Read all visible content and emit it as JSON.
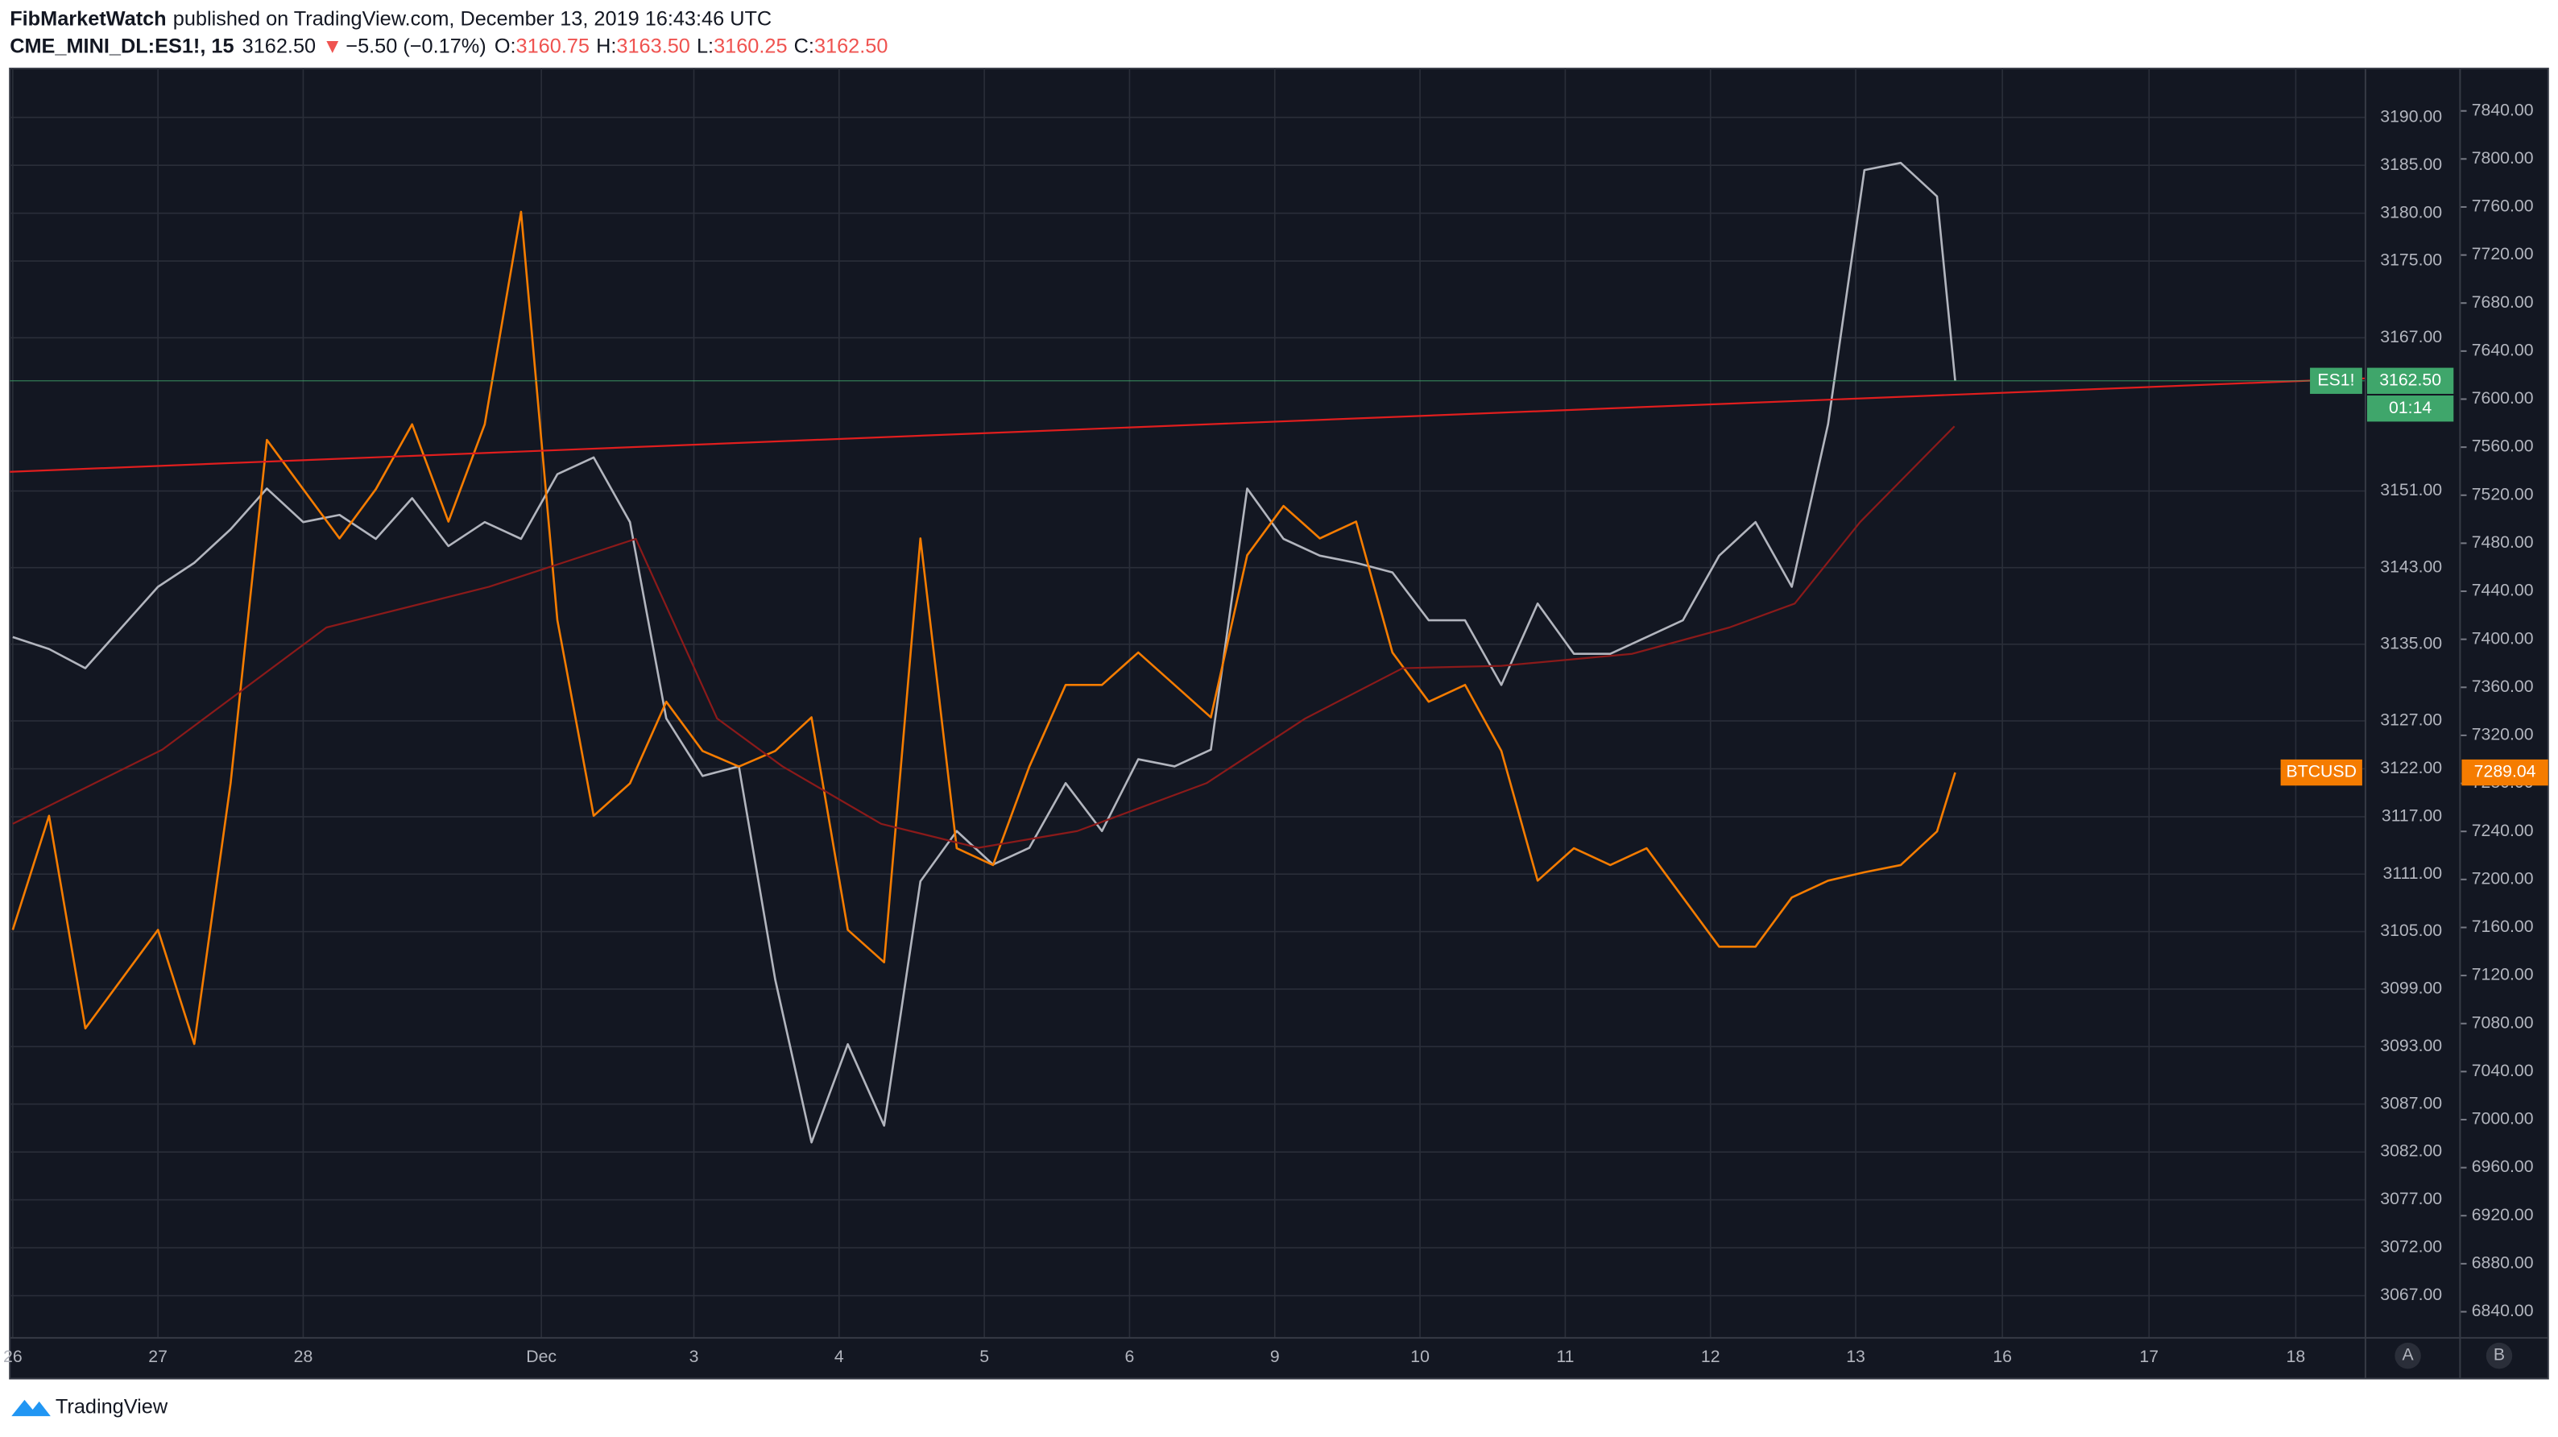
{
  "header": {
    "author": "FibMarketWatch",
    "published": "published on TradingView.com, December 13, 2019 16:43:46 UTC",
    "symbol": "CME_MINI_DL:ES1!, 15",
    "last": "3162.50",
    "arrow": "▼",
    "change": "−5.50 (−0.17%)",
    "o_label": "O:",
    "open": "3160.75",
    "h_label": "H:",
    "high": "3163.50",
    "l_label": "L:",
    "low": "3160.25",
    "c_label": "C:",
    "close": "3162.50"
  },
  "footer": {
    "brand": "TradingView"
  },
  "axis_buttons": [
    "A",
    "B"
  ],
  "chart_data": {
    "type": "line",
    "grid": true,
    "x": [
      0,
      0.25,
      0.5,
      0.75,
      1,
      1.25,
      1.5,
      1.75,
      2,
      2.25,
      2.5,
      2.75,
      3,
      3.25,
      3.5,
      3.75,
      4,
      4.25,
      4.5,
      4.75,
      5,
      5.25,
      5.5,
      5.75,
      6,
      6.25,
      6.5,
      6.75,
      7,
      7.25,
      7.5,
      7.75,
      8,
      8.25,
      8.5,
      8.75,
      9,
      9.25,
      9.5,
      9.75,
      10,
      10.25,
      10.5,
      10.75,
      11,
      11.25,
      11.5,
      11.75,
      12,
      12.25,
      12.5,
      12.75,
      13,
      13.25,
      13.375
    ],
    "xlim": [
      -0.02,
      16.2
    ],
    "xticks": [
      {
        "value": 0,
        "label": "26"
      },
      {
        "value": 1,
        "label": "27"
      },
      {
        "value": 2,
        "label": "28"
      },
      {
        "value": 3.64,
        "label": "Dec"
      },
      {
        "value": 4.69,
        "label": "3"
      },
      {
        "value": 5.69,
        "label": "4"
      },
      {
        "value": 6.69,
        "label": "5"
      },
      {
        "value": 7.69,
        "label": "6"
      },
      {
        "value": 8.69,
        "label": "9"
      },
      {
        "value": 9.69,
        "label": "10"
      },
      {
        "value": 10.69,
        "label": "11"
      },
      {
        "value": 11.69,
        "label": "12"
      },
      {
        "value": 12.69,
        "label": "13"
      },
      {
        "value": 13.7,
        "label": "16"
      },
      {
        "value": 14.71,
        "label": "17"
      },
      {
        "value": 15.72,
        "label": "18"
      }
    ],
    "ylim": [
      3062.6,
      3195.1
    ],
    "yticks": [
      {
        "value": 3190,
        "label": "3190.00"
      },
      {
        "value": 3185,
        "label": "3185.00"
      },
      {
        "value": 3180,
        "label": "3180.00"
      },
      {
        "value": 3175,
        "label": "3175.00"
      },
      {
        "value": 3167,
        "label": "3167.00"
      },
      {
        "value": 3151,
        "label": "3151.00"
      },
      {
        "value": 3143,
        "label": "3143.00"
      },
      {
        "value": 3135,
        "label": "3135.00"
      },
      {
        "value": 3127,
        "label": "3127.00"
      },
      {
        "value": 3122,
        "label": "3122.00"
      },
      {
        "value": 3117,
        "label": "3117.00"
      },
      {
        "value": 3111,
        "label": "3111.00"
      },
      {
        "value": 3105,
        "label": "3105.00"
      },
      {
        "value": 3099,
        "label": "3099.00"
      },
      {
        "value": 3093,
        "label": "3093.00"
      },
      {
        "value": 3087,
        "label": "3087.00"
      },
      {
        "value": 3082,
        "label": "3082.00"
      },
      {
        "value": 3077,
        "label": "3077.00"
      },
      {
        "value": 3072,
        "label": "3072.00"
      },
      {
        "value": 3067,
        "label": "3067.00"
      }
    ],
    "y2lim": [
      6818.3,
      7875.3
    ],
    "y2ticks": [
      {
        "value": 7840,
        "label": "7840.00"
      },
      {
        "value": 7800,
        "label": "7800.00"
      },
      {
        "value": 7760,
        "label": "7760.00"
      },
      {
        "value": 7720,
        "label": "7720.00"
      },
      {
        "value": 7680,
        "label": "7680.00"
      },
      {
        "value": 7640,
        "label": "7640.00"
      },
      {
        "value": 7600,
        "label": "7600.00"
      },
      {
        "value": 7560,
        "label": "7560.00"
      },
      {
        "value": 7520,
        "label": "7520.00"
      },
      {
        "value": 7480,
        "label": "7480.00"
      },
      {
        "value": 7440,
        "label": "7440.00"
      },
      {
        "value": 7400,
        "label": "7400.00"
      },
      {
        "value": 7360,
        "label": "7360.00"
      },
      {
        "value": 7320,
        "label": "7320.00"
      },
      {
        "value": 7280,
        "label": "7280.00"
      },
      {
        "value": 7240,
        "label": "7240.00"
      },
      {
        "value": 7200,
        "label": "7200.00"
      },
      {
        "value": 7160,
        "label": "7160.00"
      },
      {
        "value": 7120,
        "label": "7120.00"
      },
      {
        "value": 7080,
        "label": "7080.00"
      },
      {
        "value": 7040,
        "label": "7040.00"
      },
      {
        "value": 7000,
        "label": "7000.00"
      },
      {
        "value": 6960,
        "label": "6960.00"
      },
      {
        "value": 6920,
        "label": "6920.00"
      },
      {
        "value": 6880,
        "label": "6880.00"
      },
      {
        "value": 6840,
        "label": "6840.00"
      }
    ],
    "series": [
      {
        "name": "ES1!",
        "color": "#b2b5be",
        "price_tag": "3162.50",
        "countdown": "01:14",
        "values": [
          3135.75,
          3134.5,
          3132.5,
          3136.75,
          3141,
          3143.5,
          3147,
          3151.25,
          3147.75,
          3148.5,
          3146,
          3150.25,
          3145.25,
          3147.75,
          3146,
          3152.75,
          3154.5,
          3147.75,
          3127.25,
          3121.25,
          3122.25,
          3100,
          3083,
          3093.25,
          3084.75,
          3110.25,
          3115.5,
          3112,
          3113.75,
          3120.5,
          3115.5,
          3123,
          3122.25,
          3124,
          3151.25,
          3146,
          3144.25,
          3143.5,
          3142.5,
          3137.5,
          3137.5,
          3130.75,
          3139.25,
          3134,
          3134,
          3135.75,
          3137.5,
          3144.25,
          3147.75,
          3141,
          3158,
          3184.5,
          3185.25,
          3181.75,
          3162.5
        ]
      },
      {
        "name": "BTCUSD",
        "color": "#f57c00",
        "axis": "y2",
        "values": [
          7158,
          7253,
          7076,
          7117,
          7158,
          7063,
          7280,
          7566,
          7525,
          7484,
          7525,
          7579,
          7498,
          7579,
          7756,
          7416,
          7253,
          7280,
          7348,
          7307,
          7294,
          7307,
          7335,
          7158,
          7131,
          7484,
          7226,
          7212,
          7294,
          7362,
          7362,
          7389,
          7362,
          7335,
          7470,
          7511,
          7484,
          7498,
          7389,
          7348,
          7362,
          7307,
          7199,
          7226,
          7212,
          7226,
          7185,
          7144,
          7144,
          7185,
          7199,
          7206,
          7212,
          7240,
          7289.04
        ]
      },
      {
        "color": "#8b1a1a",
        "x": [
          0,
          1.03,
          2.16,
          3.28,
          4.29,
          4.85,
          5.3,
          5.98,
          6.65,
          7.33,
          8.22,
          8.9,
          9.57,
          10.25,
          11.15,
          11.82,
          12.27,
          12.72,
          13.37
        ],
        "values": [
          3116.25,
          3124,
          3136.75,
          3141,
          3146,
          3127.25,
          3122.25,
          3116.25,
          3113.75,
          3115.5,
          3120.5,
          3127.25,
          3132.5,
          3132.75,
          3134,
          3136.75,
          3139.25,
          3147.75,
          3157.75
        ]
      },
      {
        "color": "#e01e1e",
        "x": [
          -0.02,
          16.2
        ],
        "values": [
          3153,
          3162.75
        ]
      }
    ]
  }
}
